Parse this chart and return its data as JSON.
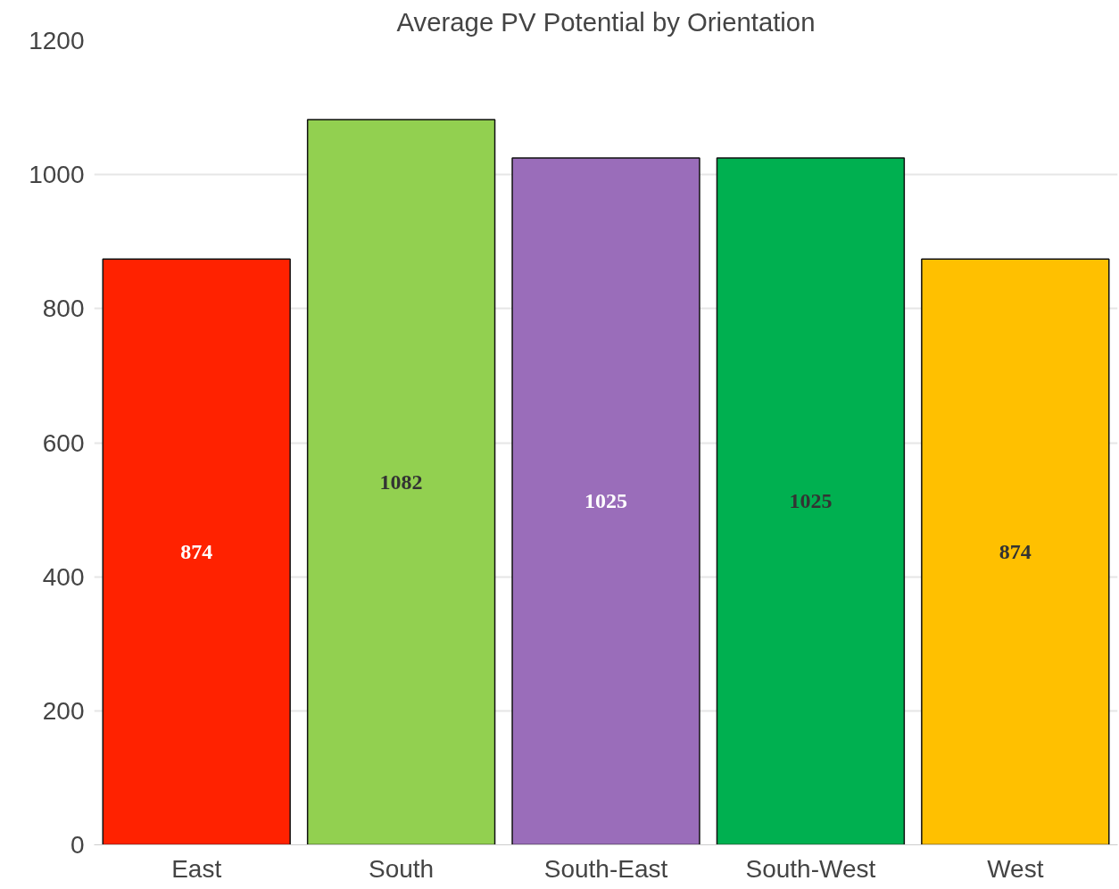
{
  "chart_data": {
    "type": "bar",
    "title": "Average PV Potential by Orientation",
    "categories": [
      "East",
      "South",
      "South-East",
      "South-West",
      "West"
    ],
    "values": [
      874,
      1082,
      1025,
      1025,
      874
    ],
    "colors": [
      "#ff2200",
      "#92d050",
      "#9a6dba",
      "#00b050",
      "#ffc000"
    ],
    "ylim": [
      0,
      1200
    ],
    "yticks": [
      0,
      200,
      400,
      600,
      800,
      1000,
      1200
    ],
    "grid": "y",
    "data_labels": true
  }
}
